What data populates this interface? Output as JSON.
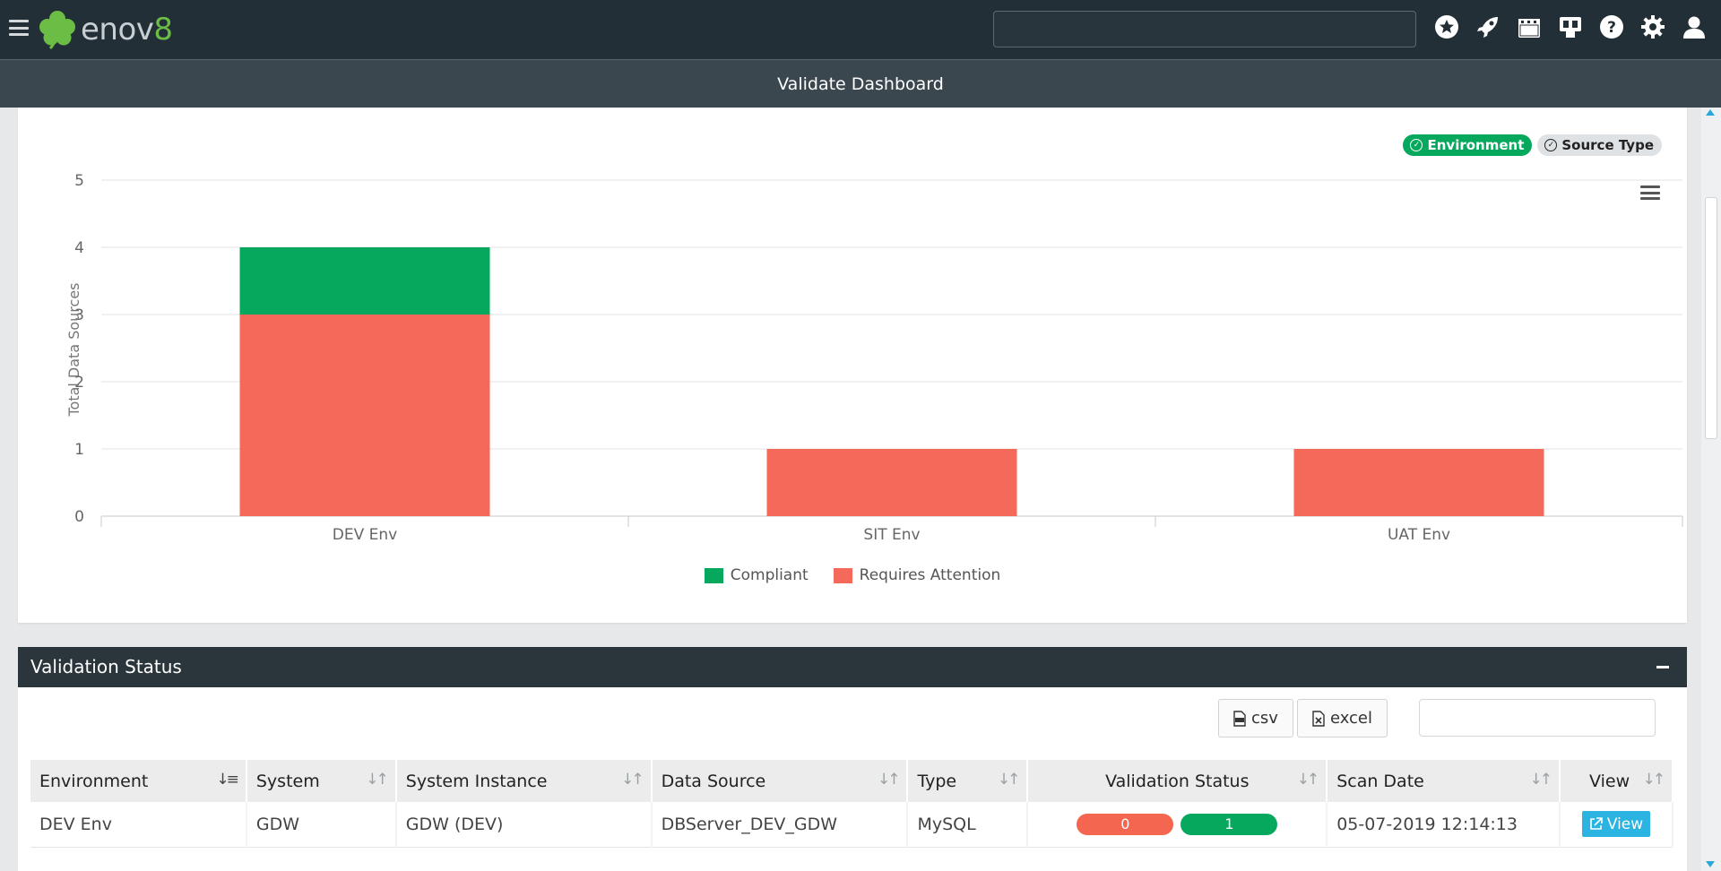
{
  "topbar": {
    "logo_text": "enov",
    "logo_digit": "8",
    "search_value": "",
    "icons": [
      "star-icon",
      "rocket-icon",
      "calendar-icon",
      "dashboard-icon",
      "help-icon",
      "gear-icon",
      "user-icon"
    ]
  },
  "page": {
    "title": "Validate Dashboard"
  },
  "chart_panel": {
    "toggles": [
      {
        "label": "Environment",
        "active": true
      },
      {
        "label": "Source Type",
        "active": false
      }
    ]
  },
  "chart_data": {
    "type": "bar",
    "stacked": true,
    "categories": [
      "DEV Env",
      "SIT Env",
      "UAT Env"
    ],
    "series": [
      {
        "name": "Requires Attention",
        "color": "#f4695a",
        "values": [
          3,
          1,
          1
        ]
      },
      {
        "name": "Compliant",
        "color": "#05a85d",
        "values": [
          1,
          0,
          0
        ]
      }
    ],
    "ylabel": "Total Data Sources",
    "xlabel": "",
    "ylim": [
      0,
      5
    ],
    "yticks": [
      0,
      1,
      2,
      3,
      4,
      5
    ],
    "grid": true,
    "legend": [
      "Compliant",
      "Requires Attention"
    ],
    "legend_position": "bottom-center"
  },
  "validation": {
    "title": "Validation Status",
    "csv_label": "csv",
    "excel_label": "excel",
    "filter_value": "",
    "columns": [
      "Environment",
      "System",
      "System Instance",
      "Data Source",
      "Type",
      "Validation Status",
      "Scan Date",
      "View"
    ],
    "rows": [
      {
        "environment": "DEV Env",
        "system": "GDW",
        "system_instance": "GDW (DEV)",
        "data_source": "DBServer_DEV_GDW",
        "type": "MySQL",
        "status_attention": "0",
        "status_compliant": "1",
        "scan_date": "05-07-2019 12:14:13",
        "view_label": "View"
      }
    ]
  }
}
